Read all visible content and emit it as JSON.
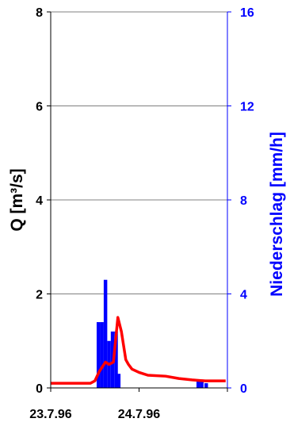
{
  "chart_data": {
    "type": "bar+line",
    "title": "",
    "colors": {
      "discharge": "#ff0000",
      "precipitation": "#0000ff",
      "right_axis_text": "#0000ff",
      "grid": "#808080"
    },
    "left_axis": {
      "label": "Q  [m³/s]",
      "ylim": [
        0,
        8
      ],
      "ticks": [
        "0",
        "2",
        "4",
        "6",
        "8"
      ]
    },
    "right_axis": {
      "label": "Niederschlag [mm/h]",
      "ylim": [
        0,
        16
      ],
      "ticks": [
        "0",
        "4",
        "8",
        "12",
        "16"
      ]
    },
    "x_axis": {
      "range_days": [
        0,
        2
      ],
      "ticks": [
        "23.7.96",
        "24.7.96"
      ]
    },
    "grid": "horizontal",
    "discharge_series": {
      "x": [
        0.0,
        0.45,
        0.5,
        0.55,
        0.62,
        0.66,
        0.71,
        0.76,
        0.8,
        0.85,
        0.88,
        0.92,
        1.0,
        1.1,
        1.3,
        1.45,
        1.6,
        1.75,
        1.98
      ],
      "y": [
        0.1,
        0.1,
        0.15,
        0.35,
        0.55,
        0.5,
        0.55,
        1.5,
        1.2,
        0.6,
        0.5,
        0.4,
        0.33,
        0.27,
        0.25,
        0.2,
        0.17,
        0.15,
        0.15
      ]
    },
    "precipitation_series": {
      "x": [
        0.52,
        0.56,
        0.6,
        0.64,
        0.68,
        0.72,
        0.75,
        1.65,
        1.69,
        1.74
      ],
      "y": [
        1.4,
        1.4,
        2.3,
        1.0,
        1.2,
        1.2,
        0.3,
        0.15,
        0.15,
        0.1
      ]
    }
  }
}
